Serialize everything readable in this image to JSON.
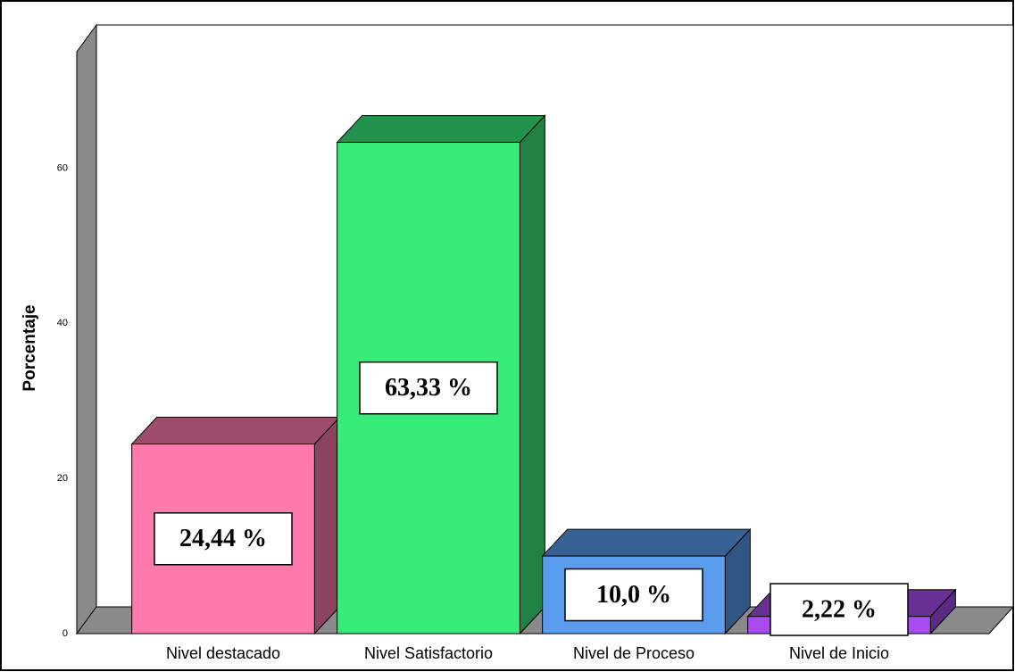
{
  "chart_data": {
    "type": "bar3d",
    "y_label": "Porcentaje",
    "categories": [
      "Nivel destacado",
      "Nivel Satisfactorio",
      "Nivel de Proceso",
      "Nivel de Inicio"
    ],
    "values": [
      24.44,
      63.33,
      10.0,
      2.22
    ],
    "value_labels": [
      "24,44 %",
      "63,33 %",
      "10,0 %",
      "2,22 %"
    ],
    "colors": [
      "#ff7aac",
      "#38ec7a",
      "#5a9cee",
      "#a84cf0"
    ],
    "ylim": [
      0,
      75
    ],
    "yticks": [
      0,
      20,
      40,
      60
    ]
  }
}
